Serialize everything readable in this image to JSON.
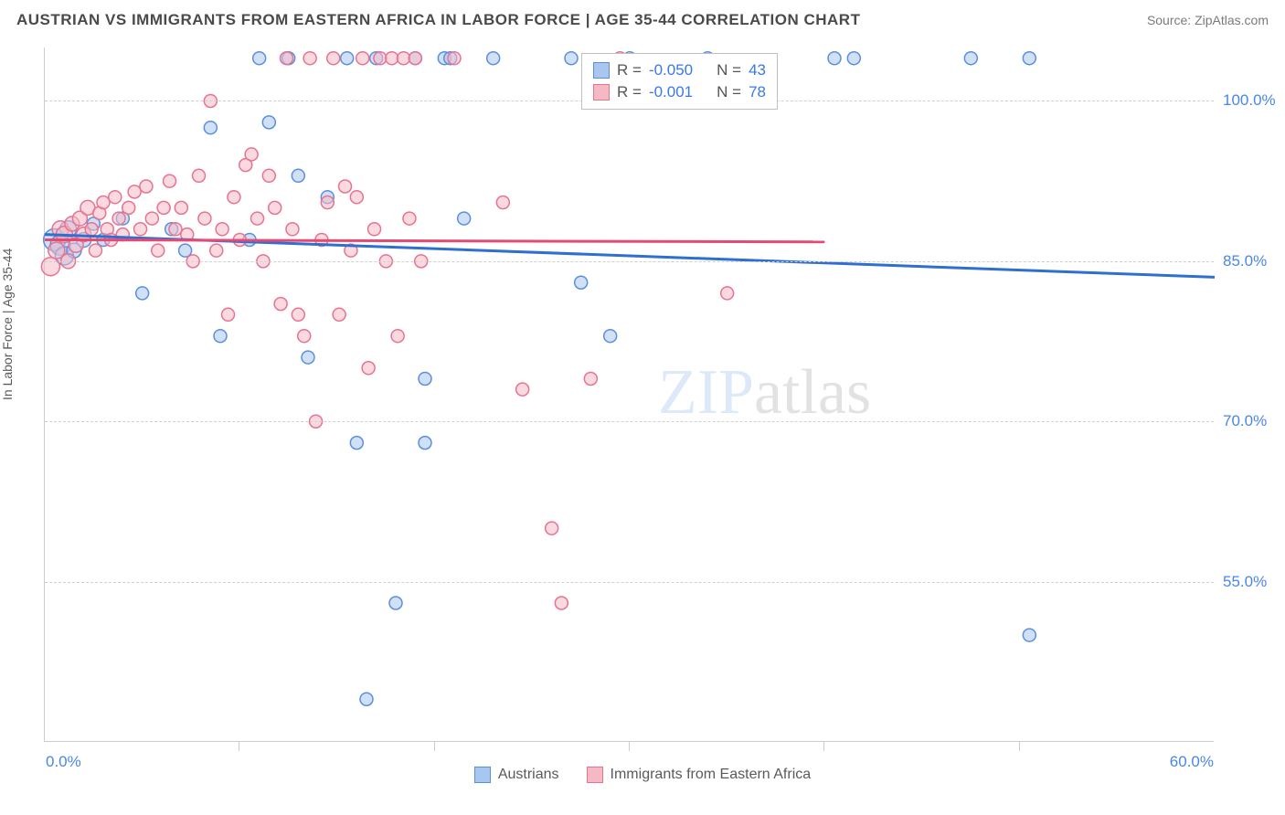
{
  "header": {
    "title": "AUSTRIAN VS IMMIGRANTS FROM EASTERN AFRICA IN LABOR FORCE | AGE 35-44 CORRELATION CHART",
    "source": "Source: ZipAtlas.com"
  },
  "chart": {
    "type": "scatter",
    "y_axis_title": "In Labor Force | Age 35-44",
    "xlim": [
      0,
      60
    ],
    "ylim": [
      40,
      105
    ],
    "yticks": [
      {
        "v": 55.0,
        "label": "55.0%"
      },
      {
        "v": 70.0,
        "label": "70.0%"
      },
      {
        "v": 85.0,
        "label": "85.0%"
      },
      {
        "v": 100.0,
        "label": "100.0%"
      }
    ],
    "xtick_label_left": "0.0%",
    "xtick_label_right": "60.0%",
    "xtick_marks": [
      10,
      20,
      30,
      40,
      50
    ],
    "grid_color": "#d0d0d0",
    "axis_color": "#cccccc",
    "background_color": "#ffffff",
    "watermark": {
      "text_left": "ZIP",
      "text_right": "atlas"
    },
    "series": [
      {
        "key": "austrians",
        "label": "Austrians",
        "fill": "#a9c6ef",
        "stroke": "#5b8fdd",
        "line_color": "#2f6fd0",
        "stats": {
          "R_label": "R =",
          "R": "-0.050",
          "N_label": "N =",
          "N": "43"
        },
        "trend": {
          "x1": 0,
          "y1": 87.5,
          "x2": 60,
          "y2": 83.5
        },
        "points": [
          {
            "x": 0.5,
            "y": 87,
            "r": 12
          },
          {
            "x": 0.8,
            "y": 86.5,
            "r": 11
          },
          {
            "x": 1.0,
            "y": 85.5,
            "r": 10
          },
          {
            "x": 1.2,
            "y": 88,
            "r": 9
          },
          {
            "x": 1.5,
            "y": 86,
            "r": 8
          },
          {
            "x": 2.0,
            "y": 87,
            "r": 8
          },
          {
            "x": 2.5,
            "y": 88.5,
            "r": 7
          },
          {
            "x": 3.0,
            "y": 87,
            "r": 7
          },
          {
            "x": 4.0,
            "y": 89,
            "r": 7
          },
          {
            "x": 5.0,
            "y": 82,
            "r": 7
          },
          {
            "x": 6.5,
            "y": 88,
            "r": 7
          },
          {
            "x": 7.2,
            "y": 86,
            "r": 7
          },
          {
            "x": 8.5,
            "y": 97.5,
            "r": 7
          },
          {
            "x": 9.0,
            "y": 78,
            "r": 7
          },
          {
            "x": 10.5,
            "y": 87,
            "r": 7
          },
          {
            "x": 11.0,
            "y": 104,
            "r": 7
          },
          {
            "x": 11.5,
            "y": 98,
            "r": 7
          },
          {
            "x": 12.5,
            "y": 104,
            "r": 7
          },
          {
            "x": 13.0,
            "y": 93,
            "r": 7
          },
          {
            "x": 13.5,
            "y": 76,
            "r": 7
          },
          {
            "x": 14.5,
            "y": 91,
            "r": 7
          },
          {
            "x": 15.5,
            "y": 104,
            "r": 7
          },
          {
            "x": 16.0,
            "y": 68,
            "r": 7
          },
          {
            "x": 16.5,
            "y": 44,
            "r": 7
          },
          {
            "x": 17.0,
            "y": 104,
            "r": 7
          },
          {
            "x": 18.0,
            "y": 53,
            "r": 7
          },
          {
            "x": 19.0,
            "y": 104,
            "r": 7
          },
          {
            "x": 19.5,
            "y": 74,
            "r": 7
          },
          {
            "x": 19.5,
            "y": 68,
            "r": 7
          },
          {
            "x": 20.5,
            "y": 104,
            "r": 7
          },
          {
            "x": 20.8,
            "y": 104,
            "r": 7
          },
          {
            "x": 21.5,
            "y": 89,
            "r": 7
          },
          {
            "x": 23.0,
            "y": 104,
            "r": 7
          },
          {
            "x": 27.0,
            "y": 104,
            "r": 7
          },
          {
            "x": 27.5,
            "y": 83,
            "r": 7
          },
          {
            "x": 29.0,
            "y": 78,
            "r": 7
          },
          {
            "x": 30.0,
            "y": 104,
            "r": 7
          },
          {
            "x": 34.0,
            "y": 104,
            "r": 7
          },
          {
            "x": 40.5,
            "y": 104,
            "r": 7
          },
          {
            "x": 41.5,
            "y": 104,
            "r": 7
          },
          {
            "x": 47.5,
            "y": 104,
            "r": 7
          },
          {
            "x": 50.5,
            "y": 50,
            "r": 7
          },
          {
            "x": 50.5,
            "y": 104,
            "r": 7
          }
        ]
      },
      {
        "key": "immigrants",
        "label": "Immigrants from Eastern Africa",
        "fill": "#f5b9c6",
        "stroke": "#e7738f",
        "line_color": "#e54a74",
        "stats": {
          "R_label": "R =",
          "R": "-0.001",
          "N_label": "N =",
          "N": "78"
        },
        "trend": {
          "x1": 0,
          "y1": 87.0,
          "x2": 40,
          "y2": 86.8
        },
        "points": [
          {
            "x": 0.3,
            "y": 84.5,
            "r": 10
          },
          {
            "x": 0.6,
            "y": 86,
            "r": 9
          },
          {
            "x": 0.8,
            "y": 88,
            "r": 9
          },
          {
            "x": 1.0,
            "y": 87.5,
            "r": 9
          },
          {
            "x": 1.2,
            "y": 85,
            "r": 8
          },
          {
            "x": 1.4,
            "y": 88.5,
            "r": 8
          },
          {
            "x": 1.6,
            "y": 86.5,
            "r": 8
          },
          {
            "x": 1.8,
            "y": 89,
            "r": 8
          },
          {
            "x": 2.0,
            "y": 87.5,
            "r": 8
          },
          {
            "x": 2.2,
            "y": 90,
            "r": 8
          },
          {
            "x": 2.4,
            "y": 88,
            "r": 7
          },
          {
            "x": 2.6,
            "y": 86,
            "r": 7
          },
          {
            "x": 2.8,
            "y": 89.5,
            "r": 7
          },
          {
            "x": 3.0,
            "y": 90.5,
            "r": 7
          },
          {
            "x": 3.2,
            "y": 88,
            "r": 7
          },
          {
            "x": 3.4,
            "y": 87,
            "r": 7
          },
          {
            "x": 3.6,
            "y": 91,
            "r": 7
          },
          {
            "x": 3.8,
            "y": 89,
            "r": 7
          },
          {
            "x": 4.0,
            "y": 87.5,
            "r": 7
          },
          {
            "x": 4.3,
            "y": 90,
            "r": 7
          },
          {
            "x": 4.6,
            "y": 91.5,
            "r": 7
          },
          {
            "x": 4.9,
            "y": 88,
            "r": 7
          },
          {
            "x": 5.2,
            "y": 92,
            "r": 7
          },
          {
            "x": 5.5,
            "y": 89,
            "r": 7
          },
          {
            "x": 5.8,
            "y": 86,
            "r": 7
          },
          {
            "x": 6.1,
            "y": 90,
            "r": 7
          },
          {
            "x": 6.4,
            "y": 92.5,
            "r": 7
          },
          {
            "x": 6.7,
            "y": 88,
            "r": 7
          },
          {
            "x": 7.0,
            "y": 90,
            "r": 7
          },
          {
            "x": 7.3,
            "y": 87.5,
            "r": 7
          },
          {
            "x": 7.6,
            "y": 85,
            "r": 7
          },
          {
            "x": 7.9,
            "y": 93,
            "r": 7
          },
          {
            "x": 8.2,
            "y": 89,
            "r": 7
          },
          {
            "x": 8.5,
            "y": 100,
            "r": 7
          },
          {
            "x": 8.8,
            "y": 86,
            "r": 7
          },
          {
            "x": 9.1,
            "y": 88,
            "r": 7
          },
          {
            "x": 9.4,
            "y": 80,
            "r": 7
          },
          {
            "x": 9.7,
            "y": 91,
            "r": 7
          },
          {
            "x": 10.0,
            "y": 87,
            "r": 7
          },
          {
            "x": 10.3,
            "y": 94,
            "r": 7
          },
          {
            "x": 10.6,
            "y": 95,
            "r": 7
          },
          {
            "x": 10.9,
            "y": 89,
            "r": 7
          },
          {
            "x": 11.2,
            "y": 85,
            "r": 7
          },
          {
            "x": 11.5,
            "y": 93,
            "r": 7
          },
          {
            "x": 11.8,
            "y": 90,
            "r": 7
          },
          {
            "x": 12.1,
            "y": 81,
            "r": 7
          },
          {
            "x": 12.4,
            "y": 104,
            "r": 7
          },
          {
            "x": 12.7,
            "y": 88,
            "r": 7
          },
          {
            "x": 13.0,
            "y": 80,
            "r": 7
          },
          {
            "x": 13.3,
            "y": 78,
            "r": 7
          },
          {
            "x": 13.6,
            "y": 104,
            "r": 7
          },
          {
            "x": 13.9,
            "y": 70,
            "r": 7
          },
          {
            "x": 14.2,
            "y": 87,
            "r": 7
          },
          {
            "x": 14.5,
            "y": 90.5,
            "r": 7
          },
          {
            "x": 14.8,
            "y": 104,
            "r": 7
          },
          {
            "x": 15.1,
            "y": 80,
            "r": 7
          },
          {
            "x": 15.4,
            "y": 92,
            "r": 7
          },
          {
            "x": 15.7,
            "y": 86,
            "r": 7
          },
          {
            "x": 16.0,
            "y": 91,
            "r": 7
          },
          {
            "x": 16.3,
            "y": 104,
            "r": 7
          },
          {
            "x": 16.6,
            "y": 75,
            "r": 7
          },
          {
            "x": 16.9,
            "y": 88,
            "r": 7
          },
          {
            "x": 17.2,
            "y": 104,
            "r": 7
          },
          {
            "x": 17.5,
            "y": 85,
            "r": 7
          },
          {
            "x": 17.8,
            "y": 104,
            "r": 7
          },
          {
            "x": 18.1,
            "y": 78,
            "r": 7
          },
          {
            "x": 18.4,
            "y": 104,
            "r": 7
          },
          {
            "x": 18.7,
            "y": 89,
            "r": 7
          },
          {
            "x": 19.0,
            "y": 104,
            "r": 7
          },
          {
            "x": 19.3,
            "y": 85,
            "r": 7
          },
          {
            "x": 21.0,
            "y": 104,
            "r": 7
          },
          {
            "x": 23.5,
            "y": 90.5,
            "r": 7
          },
          {
            "x": 24.5,
            "y": 73,
            "r": 7
          },
          {
            "x": 26.0,
            "y": 60,
            "r": 7
          },
          {
            "x": 26.5,
            "y": 53,
            "r": 7
          },
          {
            "x": 28.0,
            "y": 74,
            "r": 7
          },
          {
            "x": 29.5,
            "y": 104,
            "r": 7
          },
          {
            "x": 35.0,
            "y": 82,
            "r": 7
          }
        ]
      }
    ]
  },
  "legend_bottom": [
    {
      "label": "Austrians",
      "fill": "#a9c6ef",
      "stroke": "#5b8fdd"
    },
    {
      "label": "Immigrants from Eastern Africa",
      "fill": "#f5b9c6",
      "stroke": "#e7738f"
    }
  ]
}
